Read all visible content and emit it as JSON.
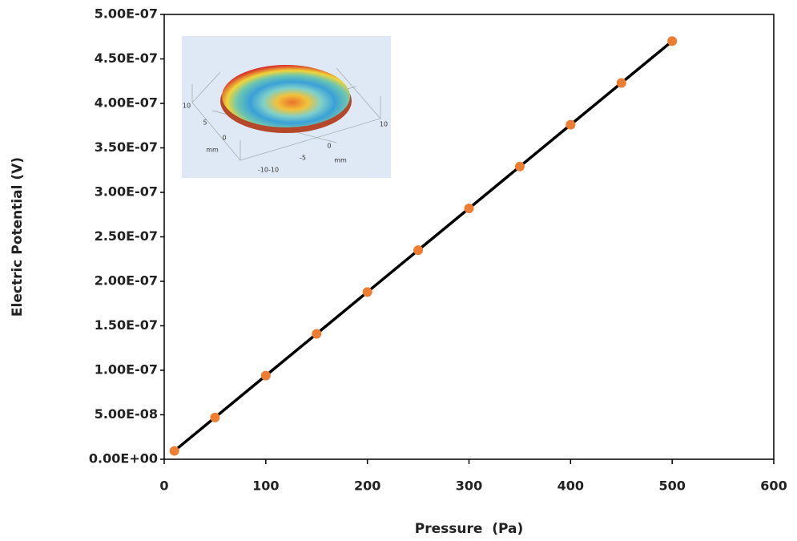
{
  "chart_data": {
    "type": "line",
    "x_label": "Pressure  (Pa)",
    "y_label": "Electric Potential (V)",
    "x": [
      10,
      50,
      100,
      150,
      200,
      250,
      300,
      350,
      400,
      450,
      500
    ],
    "values": [
      9.4e-09,
      4.7e-08,
      9.4e-08,
      1.41e-07,
      1.88e-07,
      2.35e-07,
      2.82e-07,
      3.29e-07,
      3.76e-07,
      4.23e-07,
      4.7e-07
    ],
    "line_color": "#000000",
    "marker_color": "#ed7d31",
    "xlim": [
      0,
      600
    ],
    "xticks": [
      0,
      100,
      200,
      300,
      400,
      500,
      600
    ],
    "ylim": [
      0,
      5e-07
    ],
    "yticks": [
      {
        "value": 0,
        "label": "0.00E+00"
      },
      {
        "value": 5e-08,
        "label": "5.00E-08"
      },
      {
        "value": 1e-07,
        "label": "1.00E-07"
      },
      {
        "value": 1.5e-07,
        "label": "1.50E-07"
      },
      {
        "value": 2e-07,
        "label": "2.00E-07"
      },
      {
        "value": 2.5e-07,
        "label": "2.50E-07"
      },
      {
        "value": 3e-07,
        "label": "3.00E-07"
      },
      {
        "value": 3.5e-07,
        "label": "3.50E-07"
      },
      {
        "value": 4e-07,
        "label": "4.00E-07"
      },
      {
        "value": 4.5e-07,
        "label": "4.50E-07"
      },
      {
        "value": 5e-07,
        "label": "5.00E-07"
      }
    ],
    "grid": false,
    "inset_labels": [
      "10",
      "5",
      "0",
      "mm",
      "-10-10",
      "-5",
      "0",
      "mm",
      "10"
    ]
  }
}
